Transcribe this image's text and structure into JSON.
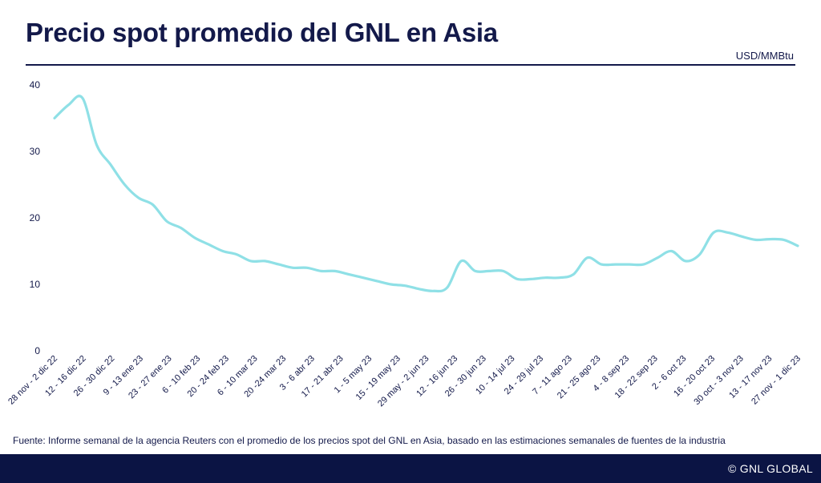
{
  "header": {
    "title": "Precio spot promedio del GNL en Asia",
    "unit": "USD/MMBtu"
  },
  "source": "Fuente: Informe semanal de la agencia Reuters con el promedio de los precios spot del GNL en Asia, basado en las estimaciones semanales de fuentes de la industria",
  "footer": {
    "brand": "© GNL GLOBAL"
  },
  "colors": {
    "line": "#8fe0e6",
    "text": "#13194a",
    "footer": "#0b1444"
  },
  "chart_data": {
    "type": "line",
    "title": "Precio spot promedio del GNL en Asia",
    "ylabel": "USD/MMBtu",
    "ylim": [
      0,
      40
    ],
    "yticks": [
      0,
      10,
      20,
      30,
      40
    ],
    "grid": false,
    "xtick_labels": [
      "28 nov - 2 dic 22",
      "12 - 16 dic 22",
      "26 - 30 dic 22",
      "9 - 13 ene 23",
      "23 - 27 ene 23",
      "6 - 10 feb 23",
      "20 - 24 feb 23",
      "6 - 10 mar 23",
      "20 -24 mar 23",
      "3 - 6 abr 23",
      "17 - 21 abr 23",
      "1 - 5 may 23",
      "15 - 19 may 23",
      "29 may - 2 jun 23",
      "12 - 16 jun 23",
      "26 - 30 jun 23",
      "10 - 14 jul 23",
      "24 - 29 jul 23",
      "7 - 11 ago 23",
      "21 - 25 ago 23",
      "4 - 8 sep 23",
      "18 - 22 sep 23",
      "2 - 6 oct 23",
      "16 - 20 oct 23",
      "30 oct - 3 nov 23",
      "13 - 17 nov 23",
      "27 nov - 1 dic 23"
    ],
    "series": [
      {
        "values": [
          35,
          37,
          38,
          31,
          28,
          25,
          23,
          22,
          19.5,
          18.5,
          17,
          16,
          15,
          14.5,
          13.5,
          13.5,
          13,
          12.5,
          12.5,
          12,
          12,
          11.5,
          11,
          10.5,
          10,
          9.8,
          9.3,
          9,
          9.5,
          13.5,
          12,
          12,
          12,
          10.8,
          10.8,
          11,
          11,
          11.5,
          14,
          13,
          13,
          13,
          13,
          14,
          15,
          13.5,
          14.5,
          17.8,
          17.8,
          17.2,
          16.7,
          16.8,
          16.7,
          15.8
        ]
      }
    ]
  }
}
